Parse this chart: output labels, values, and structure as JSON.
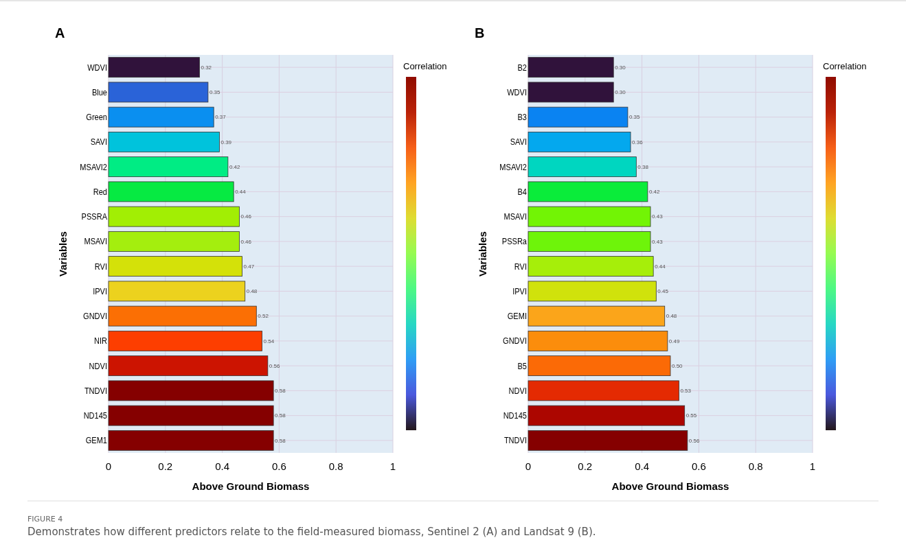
{
  "chart_data": [
    {
      "type": "bar",
      "orientation": "horizontal",
      "title": "A",
      "xlabel": "Above Ground Biomass",
      "ylabel": "Variables",
      "clabel": "Correlation",
      "categories": [
        "WDVI",
        "Blue",
        "Green",
        "SAVI",
        "MSAVI2",
        "Red",
        "PSSRA",
        "MSAVI",
        "RVI",
        "IPVI",
        "GNDVI",
        "NIR",
        "NDVI",
        "TNDVI",
        "ND145",
        "GEM1"
      ],
      "values": [
        0.32,
        0.35,
        0.37,
        0.39,
        0.42,
        0.44,
        0.46,
        0.46,
        0.47,
        0.48,
        0.52,
        0.54,
        0.56,
        0.58,
        0.58,
        0.58
      ],
      "value_labels": [
        "0.32",
        "0.35",
        "0.37",
        "0.39",
        "0.42",
        "0.44",
        "0.46",
        "0.46",
        "0.47",
        "0.48",
        "0.52",
        "0.54",
        "0.56",
        "0.58",
        "0.58",
        "0.58"
      ],
      "colors": [
        "#30123b",
        "#2a63d8",
        "#0a8ff0",
        "#00c3dc",
        "#00ec84",
        "#06ea42",
        "#a2ee04",
        "#a4ee0e",
        "#d4e109",
        "#ecd21e",
        "#fb6f04",
        "#fd3e00",
        "#cc1401",
        "#850000",
        "#850000",
        "#850000"
      ],
      "xlim": [
        0,
        1
      ],
      "xticks": [
        0,
        0.2,
        0.4,
        0.6,
        0.8,
        1
      ],
      "grid": true,
      "annotations": [
        "FIGURE 4",
        "Demonstrates how different predictors relate to the field-measured biomass, Sentinel 2 (A) and Landsat 9 (B)."
      ]
    },
    {
      "type": "bar",
      "orientation": "horizontal",
      "title": "B",
      "xlabel": "Above Ground Biomass",
      "ylabel": "Variables",
      "clabel": "Correlation",
      "categories": [
        "B2",
        "WDVI",
        "B3",
        "SAVI",
        "MSAVI2",
        "B4",
        "MSAVI",
        "PSSRa",
        "RVI",
        "IPVI",
        "GEMI",
        "GNDVI",
        "B5",
        "NDVI",
        "ND145",
        "TNDVI"
      ],
      "values": [
        0.3,
        0.3,
        0.35,
        0.36,
        0.38,
        0.42,
        0.43,
        0.43,
        0.44,
        0.45,
        0.48,
        0.49,
        0.5,
        0.53,
        0.55,
        0.56
      ],
      "value_labels": [
        "0.30",
        "0.30",
        "0.35",
        "0.36",
        "0.38",
        "0.42",
        "0.43",
        "0.43",
        "0.44",
        "0.45",
        "0.48",
        "0.49",
        "0.50",
        "0.53",
        "0.55",
        "0.56"
      ],
      "colors": [
        "#30123b",
        "#30123b",
        "#0a83f2",
        "#04a8ee",
        "#00d6c0",
        "#0aec3a",
        "#72f405",
        "#6ef40a",
        "#a6ee0a",
        "#d0e20c",
        "#fba51a",
        "#fb8d0c",
        "#fb6a06",
        "#e42a02",
        "#ac0600",
        "#850000"
      ],
      "xlim": [
        0,
        1
      ],
      "xticks": [
        0,
        0.2,
        0.4,
        0.6,
        0.8,
        1
      ],
      "grid": true
    }
  ]
}
